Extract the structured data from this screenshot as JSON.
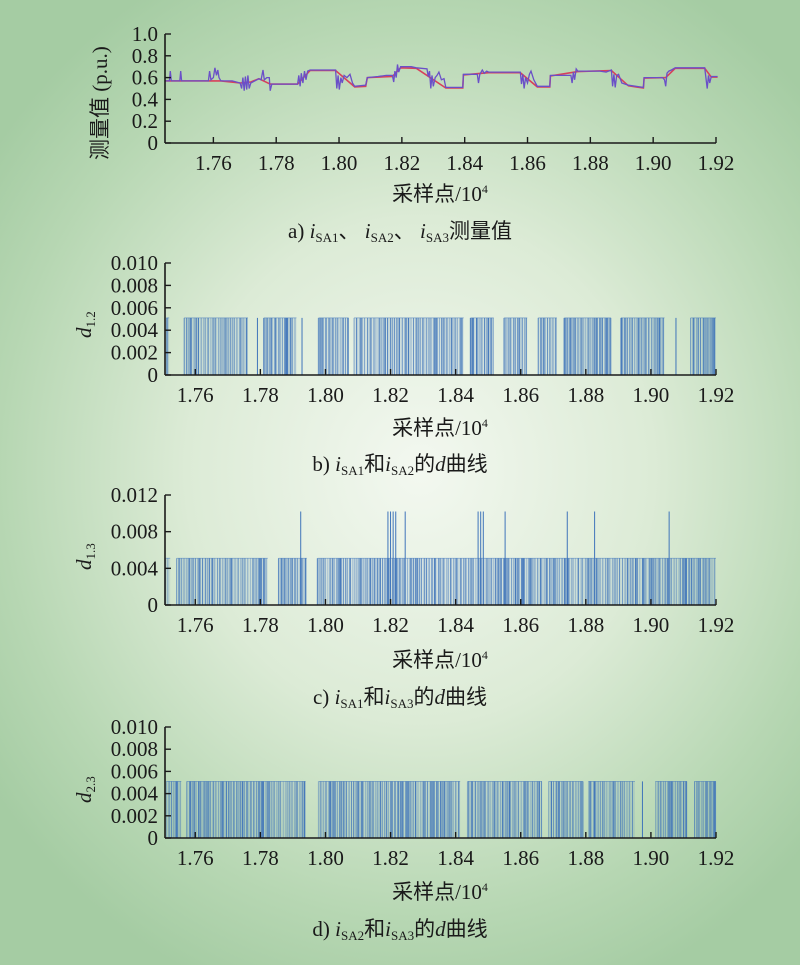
{
  "colors": {
    "background_center": "#f3f8f0",
    "background_edge": "#a5cca3",
    "series_a1": "#6a4fc8",
    "series_a2": "#d8405a",
    "bars": "#3f74ba",
    "axis": "#1a1a1a"
  },
  "chart_data": [
    {
      "type": "line",
      "ylabel": "测量值 (p.u.)",
      "xlabel": {
        "text": "采样点/10",
        "sup": "4"
      },
      "caption": [
        {
          "text": "a) "
        },
        {
          "text": "i",
          "italic": true,
          "sub": "SA1"
        },
        {
          "text": "、 "
        },
        {
          "text": "i",
          "italic": true,
          "sub": "SA2"
        },
        {
          "text": "、 "
        },
        {
          "text": "i",
          "italic": true,
          "sub": "SA3"
        },
        {
          "text": "测量值"
        }
      ],
      "xlim": [
        1.7446,
        1.92
      ],
      "ylim": [
        0,
        1.0
      ],
      "xticks": [
        "1.76",
        "1.78",
        "1.80",
        "1.82",
        "1.84",
        "1.86",
        "1.88",
        "1.90",
        "1.92"
      ],
      "yticks": [
        "0",
        "0.2",
        "0.4",
        "0.6",
        "0.8",
        "1.0"
      ],
      "series": [
        {
          "color": "#d8405a",
          "points": [
            [
              1.7447,
              0.57
            ],
            [
              1.7624,
              0.57
            ],
            [
              1.7685,
              0.55
            ],
            [
              1.7719,
              0.56
            ],
            [
              1.7745,
              0.59
            ],
            [
              1.7781,
              0.54
            ],
            [
              1.7868,
              0.54
            ],
            [
              1.7908,
              0.665
            ],
            [
              1.7989,
              0.665
            ],
            [
              1.805,
              0.515
            ],
            [
              1.8085,
              0.52
            ],
            [
              1.809,
              0.6
            ],
            [
              1.817,
              0.61
            ],
            [
              1.8196,
              0.69
            ],
            [
              1.8246,
              0.685
            ],
            [
              1.834,
              0.505
            ],
            [
              1.8394,
              0.505
            ],
            [
              1.8396,
              0.625
            ],
            [
              1.8476,
              0.645
            ],
            [
              1.8577,
              0.645
            ],
            [
              1.8631,
              0.515
            ],
            [
              1.8671,
              0.515
            ],
            [
              1.8673,
              0.615
            ],
            [
              1.876,
              0.655
            ],
            [
              1.8867,
              0.665
            ],
            [
              1.8921,
              0.525
            ],
            [
              1.8969,
              0.505
            ],
            [
              1.8971,
              0.595
            ],
            [
              1.904,
              0.6
            ],
            [
              1.907,
              0.685
            ],
            [
              1.9164,
              0.685
            ],
            [
              1.9185,
              0.605
            ],
            [
              1.9205,
              0.605
            ]
          ]
        },
        {
          "color": "#6a4fc8",
          "points": [
            [
              1.7447,
              0.57
            ],
            [
              1.746,
              0.57
            ],
            [
              1.7463,
              0.66
            ],
            [
              1.7466,
              0.57
            ],
            [
              1.7493,
              0.57
            ],
            [
              1.7496,
              0.66
            ],
            [
              1.7499,
              0.57
            ],
            [
              1.7584,
              0.57
            ],
            [
              1.7588,
              0.66
            ],
            [
              1.7592,
              0.58
            ],
            [
              1.76,
              0.6
            ],
            [
              1.7605,
              0.69
            ],
            [
              1.761,
              0.62
            ],
            [
              1.7614,
              0.67
            ],
            [
              1.7618,
              0.6
            ],
            [
              1.7624,
              0.57
            ],
            [
              1.766,
              0.57
            ],
            [
              1.7685,
              0.55
            ],
            [
              1.769,
              0.5
            ],
            [
              1.7694,
              0.6
            ],
            [
              1.7698,
              0.48
            ],
            [
              1.7702,
              0.61
            ],
            [
              1.7706,
              0.49
            ],
            [
              1.771,
              0.62
            ],
            [
              1.7714,
              0.5
            ],
            [
              1.7719,
              0.55
            ],
            [
              1.7732,
              0.57
            ],
            [
              1.7745,
              0.59
            ],
            [
              1.7752,
              0.58
            ],
            [
              1.7758,
              0.67
            ],
            [
              1.7762,
              0.58
            ],
            [
              1.777,
              0.6
            ],
            [
              1.7778,
              0.6
            ],
            [
              1.7781,
              0.48
            ],
            [
              1.7786,
              0.54
            ],
            [
              1.7868,
              0.54
            ],
            [
              1.7872,
              0.62
            ],
            [
              1.7876,
              0.52
            ],
            [
              1.788,
              0.64
            ],
            [
              1.7885,
              0.55
            ],
            [
              1.789,
              0.66
            ],
            [
              1.7895,
              0.58
            ],
            [
              1.79,
              0.66
            ],
            [
              1.7908,
              0.67
            ],
            [
              1.7989,
              0.67
            ],
            [
              1.7993,
              0.5
            ],
            [
              1.7997,
              0.62
            ],
            [
              1.8001,
              0.49
            ],
            [
              1.8006,
              0.6
            ],
            [
              1.801,
              0.55
            ],
            [
              1.8016,
              0.62
            ],
            [
              1.8025,
              0.6
            ],
            [
              1.8035,
              0.63
            ],
            [
              1.8043,
              0.55
            ],
            [
              1.805,
              0.52
            ],
            [
              1.8085,
              0.53
            ],
            [
              1.809,
              0.6
            ],
            [
              1.8124,
              0.61
            ],
            [
              1.815,
              0.62
            ],
            [
              1.817,
              0.62
            ],
            [
              1.8174,
              0.56
            ],
            [
              1.8178,
              0.66
            ],
            [
              1.8182,
              0.6
            ],
            [
              1.8186,
              0.72
            ],
            [
              1.819,
              0.65
            ],
            [
              1.8196,
              0.7
            ],
            [
              1.823,
              0.7
            ],
            [
              1.8246,
              0.69
            ],
            [
              1.828,
              0.68
            ],
            [
              1.8284,
              0.61
            ],
            [
              1.8288,
              0.66
            ],
            [
              1.8292,
              0.5
            ],
            [
              1.8296,
              0.62
            ],
            [
              1.83,
              0.52
            ],
            [
              1.8306,
              0.6
            ],
            [
              1.8312,
              0.62
            ],
            [
              1.8318,
              0.65
            ],
            [
              1.8326,
              0.58
            ],
            [
              1.8334,
              0.59
            ],
            [
              1.834,
              0.51
            ],
            [
              1.8394,
              0.51
            ],
            [
              1.8396,
              0.63
            ],
            [
              1.844,
              0.63
            ],
            [
              1.8444,
              0.55
            ],
            [
              1.8448,
              0.63
            ],
            [
              1.8456,
              0.67
            ],
            [
              1.8462,
              0.64
            ],
            [
              1.847,
              0.66
            ],
            [
              1.8476,
              0.65
            ],
            [
              1.8577,
              0.65
            ],
            [
              1.8581,
              0.54
            ],
            [
              1.8585,
              0.63
            ],
            [
              1.8589,
              0.5
            ],
            [
              1.8594,
              0.6
            ],
            [
              1.86,
              0.55
            ],
            [
              1.8606,
              0.63
            ],
            [
              1.8611,
              0.66
            ],
            [
              1.862,
              0.58
            ],
            [
              1.8631,
              0.52
            ],
            [
              1.8671,
              0.52
            ],
            [
              1.8673,
              0.62
            ],
            [
              1.8738,
              0.62
            ],
            [
              1.8742,
              0.55
            ],
            [
              1.8746,
              0.65
            ],
            [
              1.875,
              0.58
            ],
            [
              1.8755,
              0.68
            ],
            [
              1.876,
              0.66
            ],
            [
              1.879,
              0.66
            ],
            [
              1.883,
              0.66
            ],
            [
              1.885,
              0.65
            ],
            [
              1.8867,
              0.67
            ],
            [
              1.8871,
              0.52
            ],
            [
              1.8875,
              0.63
            ],
            [
              1.8879,
              0.51
            ],
            [
              1.8884,
              0.62
            ],
            [
              1.889,
              0.63
            ],
            [
              1.89,
              0.55
            ],
            [
              1.8921,
              0.53
            ],
            [
              1.8969,
              0.51
            ],
            [
              1.8971,
              0.6
            ],
            [
              1.903,
              0.6
            ],
            [
              1.9036,
              0.58
            ],
            [
              1.904,
              0.52
            ],
            [
              1.9044,
              0.64
            ],
            [
              1.905,
              0.66
            ],
            [
              1.9058,
              0.67
            ],
            [
              1.907,
              0.69
            ],
            [
              1.9164,
              0.69
            ],
            [
              1.9168,
              0.6
            ],
            [
              1.9172,
              0.5
            ],
            [
              1.9176,
              0.62
            ],
            [
              1.918,
              0.55
            ],
            [
              1.9185,
              0.61
            ],
            [
              1.9205,
              0.61
            ]
          ]
        }
      ]
    },
    {
      "type": "bar",
      "ylabel": {
        "text": "d",
        "sub": "1.2"
      },
      "xlabel": {
        "text": "采样点/10",
        "sup": "4"
      },
      "caption": [
        {
          "text": "b) "
        },
        {
          "text": "i",
          "italic": true,
          "sub": "SA1"
        },
        {
          "text": "和"
        },
        {
          "text": "i",
          "italic": true,
          "sub": "SA2"
        },
        {
          "text": "的"
        },
        {
          "text": "d",
          "italic": true
        },
        {
          "text": "曲线"
        }
      ],
      "xlim": [
        1.7507,
        1.92
      ],
      "ylim": [
        0,
        0.01
      ],
      "xticks": [
        "1.76",
        "1.78",
        "1.80",
        "1.82",
        "1.84",
        "1.86",
        "1.88",
        "1.90",
        "1.92"
      ],
      "yticks": [
        "0",
        "0.002",
        "0.004",
        "0.006",
        "0.008",
        "0.010"
      ],
      "spike_value": 0.0051,
      "active_ranges": [
        [
          1.7511,
          1.752
        ],
        [
          1.7566,
          1.7762
        ],
        [
          1.7791,
          1.7792
        ],
        [
          1.7811,
          1.7911
        ],
        [
          1.7928,
          1.7929
        ],
        [
          1.7979,
          1.8071
        ],
        [
          1.8088,
          1.8425
        ],
        [
          1.8446,
          1.8517
        ],
        [
          1.8549,
          1.862
        ],
        [
          1.8654,
          1.8711
        ],
        [
          1.8734,
          1.8877
        ],
        [
          1.8908,
          1.9042
        ],
        [
          1.9077,
          1.9078
        ],
        [
          1.9122,
          1.92
        ]
      ],
      "high_spikes": []
    },
    {
      "type": "bar",
      "ylabel": {
        "text": "d",
        "sub": "1.3"
      },
      "xlabel": {
        "text": "采样点/10",
        "sup": "4"
      },
      "caption": [
        {
          "text": "c) "
        },
        {
          "text": "i",
          "italic": true,
          "sub": "SA1"
        },
        {
          "text": "和"
        },
        {
          "text": "i",
          "italic": true,
          "sub": "SA3"
        },
        {
          "text": "的"
        },
        {
          "text": "d",
          "italic": true
        },
        {
          "text": "曲线"
        }
      ],
      "xlim": [
        1.7507,
        1.92
      ],
      "ylim": [
        0,
        0.012
      ],
      "xticks": [
        "1.76",
        "1.78",
        "1.80",
        "1.82",
        "1.84",
        "1.86",
        "1.88",
        "1.90",
        "1.92"
      ],
      "yticks": [
        "0",
        "0.004",
        "0.008",
        "0.012"
      ],
      "spike_value": 0.0051,
      "active_ranges": [
        [
          1.7509,
          1.7523
        ],
        [
          1.7543,
          1.7823
        ],
        [
          1.7856,
          1.7943
        ],
        [
          1.7976,
          1.92
        ]
      ],
      "high_spikes": [
        1.7924,
        1.8192,
        1.82,
        1.8208,
        1.8216,
        1.8245,
        1.8469,
        1.8477,
        1.8485,
        1.8552,
        1.8743,
        1.8827,
        1.9056
      ],
      "high_value": 0.0102
    },
    {
      "type": "bar",
      "ylabel": {
        "text": "d",
        "sub": "2.3"
      },
      "xlabel": {
        "text": "采样点/10",
        "sup": "4"
      },
      "caption": [
        {
          "text": "d) "
        },
        {
          "text": "i",
          "italic": true,
          "sub": "SA2"
        },
        {
          "text": "和"
        },
        {
          "text": "i",
          "italic": true,
          "sub": "SA3"
        },
        {
          "text": "的"
        },
        {
          "text": "d",
          "italic": true
        },
        {
          "text": "曲线"
        }
      ],
      "xlim": [
        1.7507,
        1.92
      ],
      "ylim": [
        0,
        0.01
      ],
      "xticks": [
        "1.76",
        "1.78",
        "1.80",
        "1.82",
        "1.84",
        "1.86",
        "1.88",
        "1.90",
        "1.92"
      ],
      "yticks": [
        "0",
        "0.002",
        "0.004",
        "0.006",
        "0.008",
        "0.010"
      ],
      "spike_value": 0.0051,
      "active_ranges": [
        [
          1.7511,
          1.7557
        ],
        [
          1.7574,
          1.7939
        ],
        [
          1.7979,
          1.8414
        ],
        [
          1.8437,
          1.8665
        ],
        [
          1.8686,
          1.8791
        ],
        [
          1.8808,
          1.8951
        ],
        [
          1.8974,
          1.8975
        ],
        [
          1.9014,
          1.9111
        ],
        [
          1.9134,
          1.92
        ]
      ],
      "high_spikes": []
    }
  ]
}
